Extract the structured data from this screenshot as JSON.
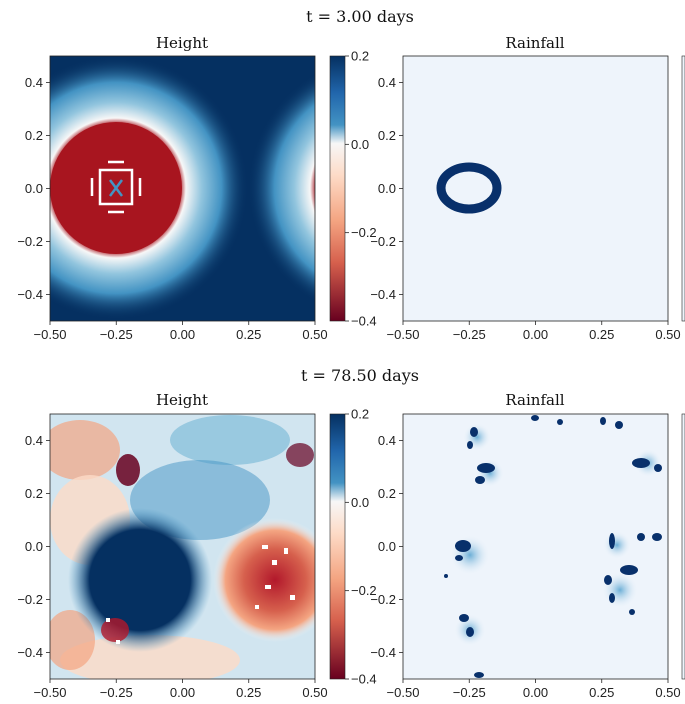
{
  "chart_data": [
    {
      "type": "heatmap",
      "suptitle": "t = 3.00 days",
      "title": "Height",
      "xlim": [
        -0.5,
        0.5
      ],
      "ylim": [
        -0.5,
        0.5
      ],
      "xticks": [
        "−0.50",
        "−0.25",
        "0.00",
        "0.25",
        "0.50"
      ],
      "yticks": [
        "0.4",
        "0.2",
        "0.0",
        "−0.2",
        "−0.4"
      ],
      "colormap": "RdBu",
      "colorbar": {
        "range": [
          -0.4,
          0.2
        ],
        "ticks": [
          "0.2",
          "0.0",
          "−0.2",
          "−0.4"
        ]
      },
      "features": "circular depression (red) centered at (-0.25, 0.0) with radius ~0.25, surrounded by a white/light-blue ring; partial ring at right edge; rest saturated blue"
    },
    {
      "type": "heatmap",
      "title": "Rainfall",
      "xlim": [
        -0.5,
        0.5
      ],
      "ylim": [
        -0.5,
        0.5
      ],
      "xticks": [
        "−0.50",
        "−0.25",
        "0.00",
        "0.25",
        "0.50"
      ],
      "yticks": [
        "0.4",
        "0.2",
        "0.0",
        "−0.2",
        "−0.4"
      ],
      "colormap": "Blues",
      "features": "single dark-blue ring of rainfall at (-0.25, 0.0), radius ~0.06"
    },
    {
      "type": "heatmap",
      "suptitle": "t = 78.50 days",
      "title": "Height",
      "xlim": [
        -0.5,
        0.5
      ],
      "ylim": [
        -0.5,
        0.5
      ],
      "xticks": [
        "−0.50",
        "−0.25",
        "0.00",
        "0.25",
        "0.50"
      ],
      "yticks": [
        "0.4",
        "0.2",
        "0.0",
        "−0.2",
        "−0.4"
      ],
      "colormap": "RdBu",
      "colorbar": {
        "range": [
          -0.4,
          0.2
        ],
        "ticks": [
          "0.2",
          "0.0",
          "−0.2",
          "−0.4"
        ]
      },
      "features": "turbulent field: large blue blob around (-0.2, -0.1), red region around (0.3, -0.15), scattered features"
    },
    {
      "type": "heatmap",
      "title": "Rainfall",
      "xlim": [
        -0.5,
        0.5
      ],
      "ylim": [
        -0.5,
        0.5
      ],
      "xticks": [
        "−0.50",
        "−0.25",
        "0.00",
        "0.25",
        "0.50"
      ],
      "yticks": [
        "0.4",
        "0.2",
        "0.0",
        "−0.2",
        "−0.4"
      ],
      "colormap": "Blues",
      "features": "scattered dark-blue rainfall patches arranged in a broken ring"
    }
  ]
}
